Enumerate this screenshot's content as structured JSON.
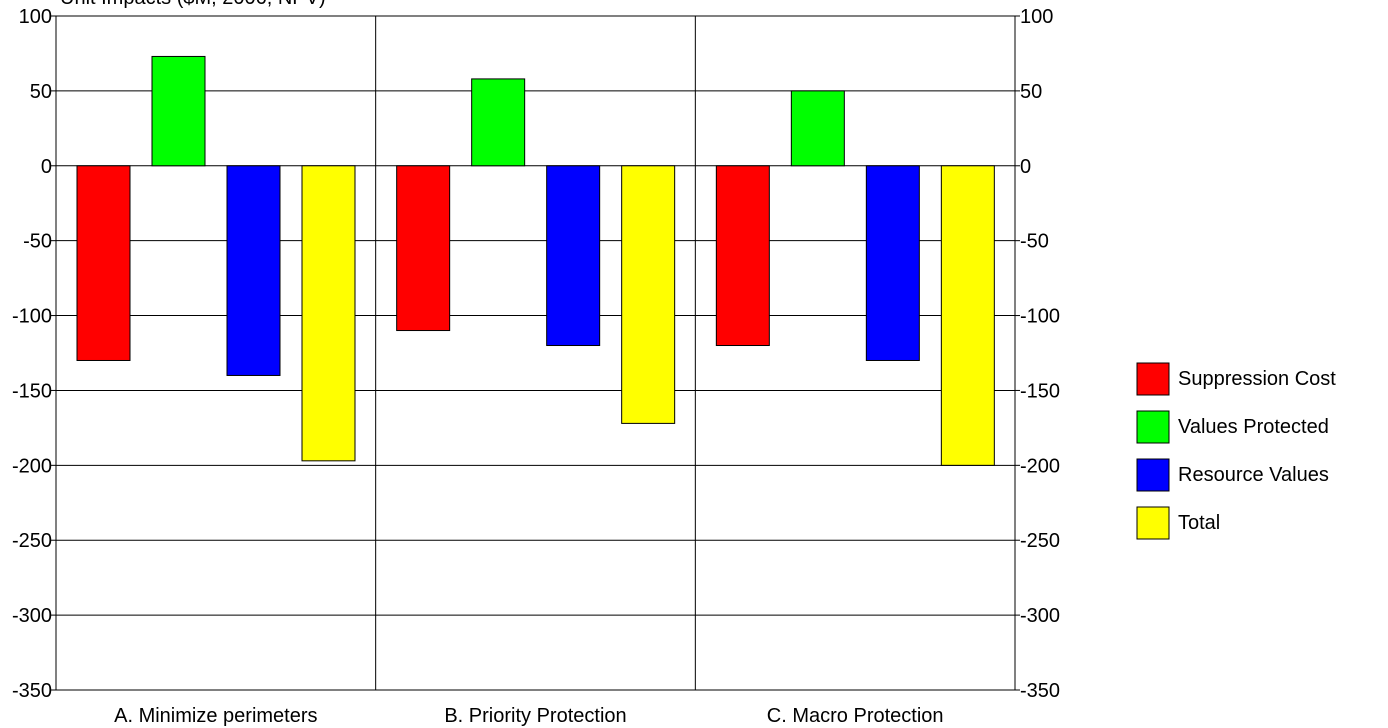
{
  "chart_data": {
    "type": "bar",
    "title": "Unit Impacts ($M, 2006, NPV)",
    "categories": [
      "A. Minimize perimeters",
      "B. Priority Protection",
      "C. Macro Protection"
    ],
    "series": [
      {
        "name": "Suppression Cost",
        "color": "#ff0000",
        "values": [
          -130,
          -110,
          -120
        ]
      },
      {
        "name": "Values Protected",
        "color": "#00ff00",
        "values": [
          73,
          58,
          50
        ]
      },
      {
        "name": "Resource Values",
        "color": "#0000ff",
        "values": [
          -140,
          -120,
          -130
        ]
      },
      {
        "name": "Total",
        "color": "#ffff00",
        "values": [
          -197,
          -172,
          -200
        ]
      }
    ],
    "ylim": [
      -350,
      100
    ],
    "yticks": [
      100,
      50,
      0,
      -50,
      -100,
      -150,
      -200,
      -250,
      -300,
      -350
    ],
    "grid": true,
    "secondary_axis": true,
    "legend": "right"
  }
}
